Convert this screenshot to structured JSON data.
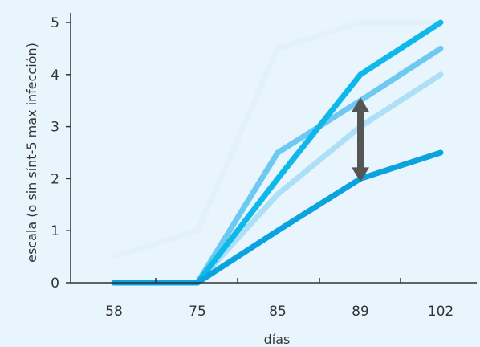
{
  "chart_data": {
    "type": "line",
    "xlabel": "días",
    "ylabel": "escala (o sin sínt-5 max infección)",
    "categories": [
      "58",
      "75",
      "85",
      "89",
      "102"
    ],
    "ylim": [
      0,
      5
    ],
    "yticks": [
      0,
      1,
      2,
      3,
      4,
      5
    ],
    "grid": false,
    "series": [
      {
        "values": [
          0.5,
          1,
          4.5,
          5,
          5
        ],
        "color": "#e3f1fb"
      },
      {
        "values": [
          0,
          0,
          1.7,
          3,
          4
        ],
        "color": "#ade0f6"
      },
      {
        "values": [
          0,
          0,
          2.5,
          3.5,
          4.5
        ],
        "color": "#6ec9f2"
      },
      {
        "values": [
          0,
          0,
          2,
          4,
          5
        ],
        "color": "#0fb8ea"
      },
      {
        "values": [
          0,
          0,
          1,
          2,
          2.5
        ],
        "color": "#0aa3e0"
      }
    ],
    "annotation": {
      "x_index": 3,
      "from": 2,
      "to": 3.5,
      "color": "#555555"
    }
  }
}
